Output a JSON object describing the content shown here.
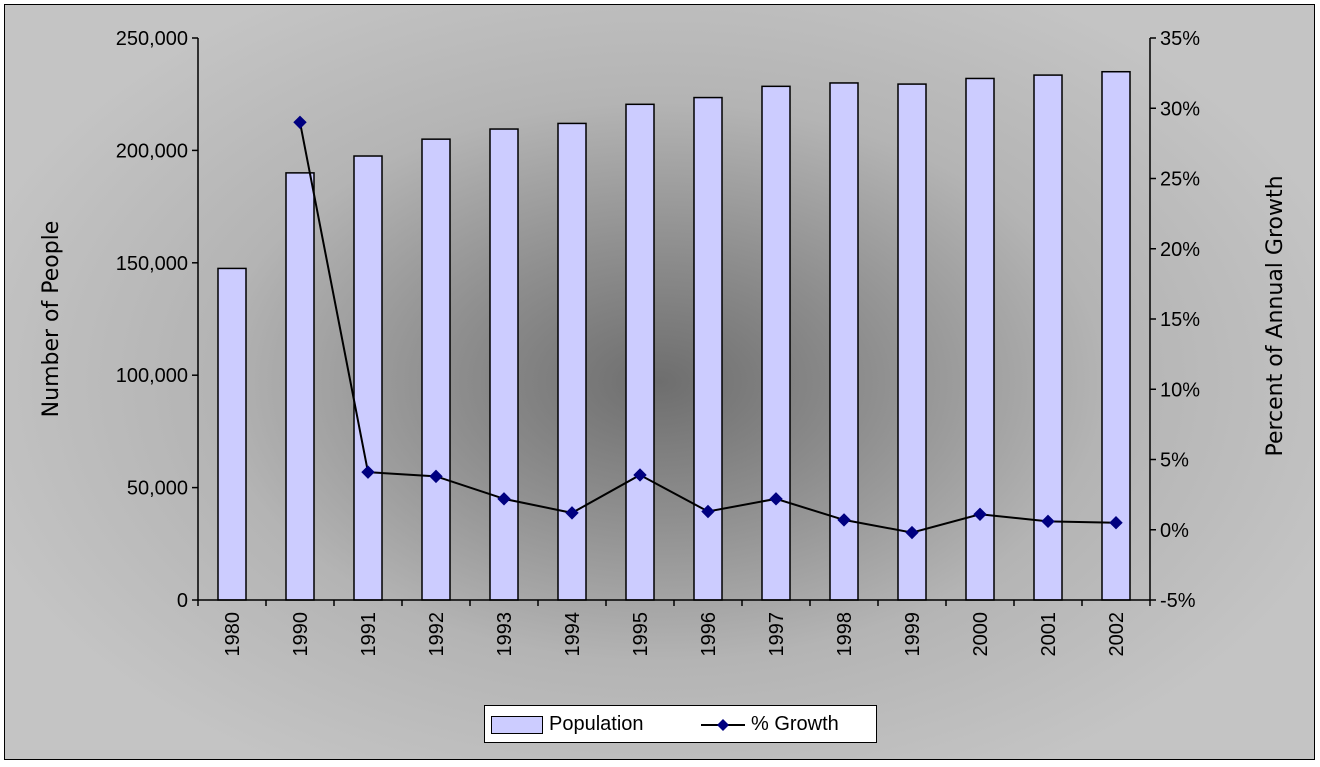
{
  "chart_data": {
    "type": "bar",
    "categories": [
      "1980",
      "1990",
      "1991",
      "1992",
      "1993",
      "1994",
      "1995",
      "1996",
      "1997",
      "1998",
      "1999",
      "2000",
      "2001",
      "2002"
    ],
    "series": [
      {
        "name": "Population",
        "type": "bar",
        "axis": "left",
        "values": [
          147500,
          190000,
          197500,
          205000,
          209500,
          212000,
          220500,
          223500,
          228500,
          230000,
          229500,
          232000,
          233500,
          235000
        ]
      },
      {
        "name": "% Growth",
        "type": "line",
        "axis": "right",
        "values": [
          null,
          29.0,
          4.1,
          3.8,
          2.2,
          1.2,
          3.9,
          1.3,
          2.2,
          0.7,
          -0.2,
          1.1,
          0.6,
          0.5
        ]
      }
    ],
    "title": "",
    "xlabel": "",
    "ylabel": "Number of People",
    "y2label": "Percent of Annual Growth",
    "ylim": [
      0,
      250000
    ],
    "y2lim": [
      -5,
      35
    ],
    "yticks": [
      "0",
      "50,000",
      "100,000",
      "150,000",
      "200,000",
      "250,000"
    ],
    "y2ticks": [
      "-5%",
      "0%",
      "5%",
      "10%",
      "15%",
      "20%",
      "25%",
      "30%",
      "35%"
    ],
    "legend": {
      "position": "bottom",
      "entries": [
        "Population",
        "% Growth"
      ]
    },
    "colors": {
      "bar_fill": "#ccccff",
      "line": "#000000",
      "marker": "#000080"
    },
    "grid": false
  }
}
